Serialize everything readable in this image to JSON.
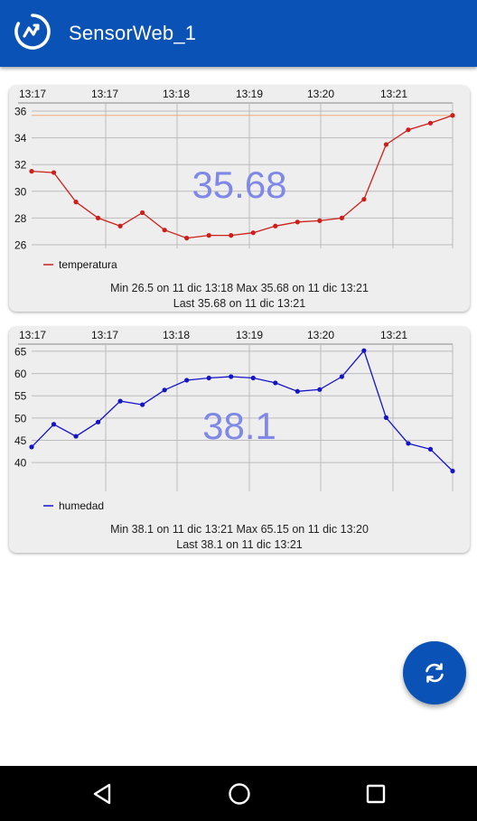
{
  "app": {
    "title": "SensorWeb_1",
    "icon": "sensor-chart-logo-icon",
    "primary_color": "#0a52b5"
  },
  "charts": [
    {
      "id": "temp",
      "big_value": "35.68",
      "legend_label": "temperatura",
      "stats_line1": "Min   26.5 on 11 dic 13:18    Max   35.68 on 11 dic 13:21",
      "stats_line2": "Last   35.68 on 11 dic 13:21",
      "line_color": "#cc1f1a",
      "big_value_color": "#7f88e6"
    },
    {
      "id": "hum",
      "big_value": "38.1",
      "legend_label": "humedad",
      "stats_line1": "Min   38.1 on 11 dic 13:21    Max   65.15 on 11 dic 13:20",
      "stats_line2": "Last   38.1 on 11 dic 13:21",
      "line_color": "#1414c8",
      "big_value_color": "#7f88e6"
    }
  ],
  "chart_data": [
    {
      "type": "line",
      "x_tick_labels": [
        "13:17",
        "13:17",
        "13:18",
        "13:19",
        "13:20",
        "13:21"
      ],
      "ylim": [
        26,
        36
      ],
      "y_ticks": [
        26,
        28,
        30,
        32,
        34,
        36
      ],
      "reference_line": 35.68,
      "grid": true,
      "legend": "bottom-left",
      "series": [
        {
          "name": "temperatura",
          "values": [
            31.5,
            31.4,
            29.2,
            28.0,
            27.4,
            28.4,
            27.1,
            26.5,
            26.7,
            26.7,
            26.9,
            27.4,
            27.7,
            27.8,
            28.0,
            29.4,
            33.5,
            34.6,
            35.1,
            35.68
          ]
        }
      ]
    },
    {
      "type": "line",
      "x_tick_labels": [
        "13:17",
        "13:17",
        "13:18",
        "13:19",
        "13:20",
        "13:21"
      ],
      "ylim": [
        38,
        66
      ],
      "y_ticks": [
        40,
        45,
        50,
        55,
        60,
        65
      ],
      "grid": true,
      "legend": "bottom-left",
      "series": [
        {
          "name": "humedad",
          "values": [
            43.5,
            48.6,
            45.9,
            49.1,
            53.8,
            53.0,
            56.3,
            58.5,
            59.0,
            59.3,
            59.0,
            57.9,
            56.0,
            56.4,
            59.3,
            65.15,
            50.1,
            44.3,
            43.0,
            38.1
          ]
        }
      ]
    }
  ],
  "fab": {
    "icon": "refresh-icon"
  },
  "navbar": {
    "back_icon": "back-triangle-icon",
    "home_icon": "home-circle-icon",
    "recents_icon": "recents-square-icon"
  }
}
